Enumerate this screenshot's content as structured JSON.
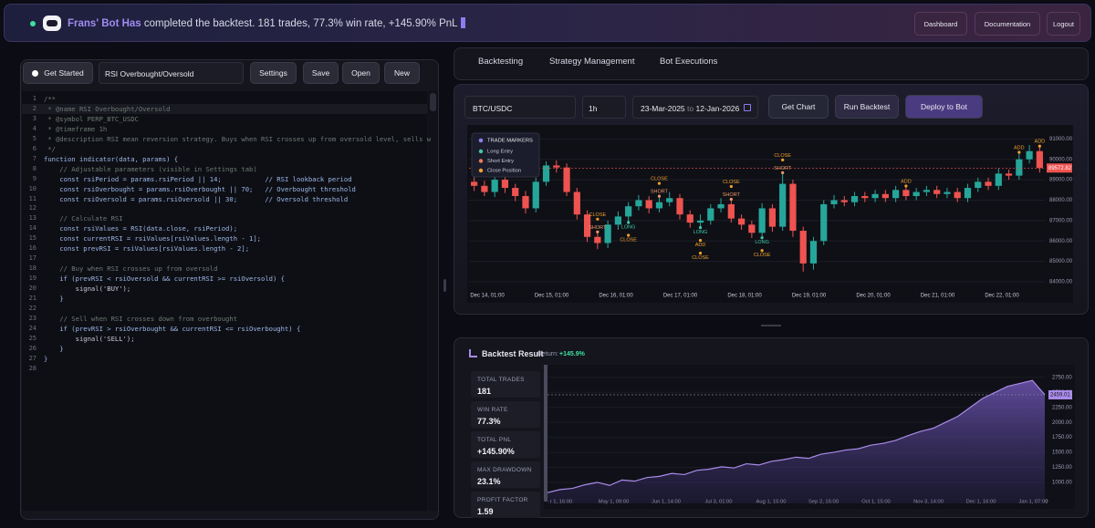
{
  "header": {
    "bot_name": "Frans' Bot Has",
    "message": "completed the backtest. 181 trades, 77.3% win rate, +145.90% PnL",
    "buttons": [
      "Dashboard",
      "Documentation",
      "Logout"
    ]
  },
  "toolbar": {
    "get_started": "Get Started",
    "strategy_name": "RSI Overbought/Oversold",
    "buttons": [
      "Settings",
      "Save",
      "Open",
      "New"
    ]
  },
  "editor": {
    "lines": [
      "/**",
      " * @name RSI Overbought/Oversold",
      " * @symbol PERP_BTC_USDC",
      " * @timeframe 1h",
      " * @description RSI mean reversion strategy. Buys when RSI crosses up from oversold level, sells w",
      " */",
      "function indicator(data, params) {",
      "    // Adjustable parameters (visible in Settings tab)",
      "    const rsiPeriod = params.rsiPeriod || 14;           // RSI lookback period",
      "    const rsiOverbought = params.rsiOverbought || 70;   // Overbought threshold",
      "    const rsiOversold = params.rsiOversold || 30;       // Oversold threshold",
      "",
      "    // Calculate RSI",
      "    const rsiValues = RSI(data.close, rsiPeriod);",
      "    const currentRSI = rsiValues[rsiValues.length - 1];",
      "    const prevRSI = rsiValues[rsiValues.length - 2];",
      "",
      "    // Buy when RSI crosses up from oversold",
      "    if (prevRSI < rsiOversold && currentRSI >= rsiOversold) {",
      "        signal('BUY');",
      "    }",
      "",
      "    // Sell when RSI crosses down from overbought",
      "    if (prevRSI > rsiOverbought && currentRSI <= rsiOverbought) {",
      "        signal('SELL');",
      "    }",
      "}",
      ""
    ],
    "line_numbers": [
      "1",
      "2",
      "3",
      "4",
      "5",
      "6",
      "7",
      "8",
      "9",
      "10",
      "11",
      "12",
      "13",
      "14",
      "15",
      "16",
      "17",
      "18",
      "19",
      "20",
      "21",
      "22",
      "23",
      "24",
      "25",
      "26",
      "27",
      "28"
    ]
  },
  "tabs": [
    "Backtesting",
    "Strategy Management",
    "Bot Executions"
  ],
  "controls": {
    "symbol": "BTC/USDC",
    "timeframe": "1h",
    "date_from": "23-Mar-2025",
    "date_sep": "to",
    "date_to": "12-Jan-2026",
    "buttons": [
      "Get Chart",
      "Run Backtest",
      "Deploy to Bot"
    ]
  },
  "price_chart": {
    "type": "candlestick",
    "legend_title": "TRADE MARKERS",
    "legend": [
      {
        "name": "Long Entry",
        "color": "#3ec9a6"
      },
      {
        "name": "Short Entry",
        "color": "#ef7a5a"
      },
      {
        "name": "Close Position",
        "color": "#f0a030"
      }
    ],
    "x_labels": [
      "Dec 14, 01:00",
      "Dec 15, 01:00",
      "Dec 16, 01:00",
      "Dec 17, 01:00",
      "Dec 18, 01:00",
      "Dec 19, 01:00",
      "Dec 20, 01:00",
      "Dec 21, 01:00",
      "Dec 22, 01:00"
    ],
    "ylim": [
      83600,
      91550
    ],
    "yticks": [
      {
        "value": 91000,
        "label": "91000.00"
      },
      {
        "value": 90000,
        "label": "90000.00"
      },
      {
        "value": 89000,
        "label": "89000.00"
      },
      {
        "value": 88000,
        "label": "88000.00"
      },
      {
        "value": 87000,
        "label": "87000.00"
      },
      {
        "value": 86000,
        "label": "86000.00"
      },
      {
        "value": 85000,
        "label": "85000.00"
      },
      {
        "value": 84000,
        "label": "84000.00"
      }
    ],
    "up_color": "#26a69a",
    "down_color": "#ef5350",
    "open": [
      88900,
      88700,
      88400,
      89000,
      88600,
      88200,
      87600,
      88900,
      89700,
      89600,
      88400,
      87300,
      86200,
      85900,
      86800,
      87200,
      87700,
      88000,
      87600,
      87900,
      88100,
      87300,
      86900,
      87000,
      87600,
      87800,
      87100,
      86800,
      86400,
      87600,
      86700,
      88800,
      86500,
      84900,
      86000,
      87800,
      88000,
      87900,
      88200,
      88100,
      88300,
      88100,
      88500,
      88200,
      88400,
      88500,
      88300,
      88400,
      88100,
      88600,
      88900,
      88700,
      89300,
      89200,
      90000,
      90400
    ],
    "high": [
      89150,
      88950,
      89250,
      89300,
      88800,
      88450,
      89100,
      89900,
      89950,
      89800,
      88600,
      87500,
      86400,
      87000,
      87450,
      87900,
      88250,
      88200,
      88150,
      88400,
      88300,
      87500,
      87300,
      87800,
      88100,
      88000,
      87300,
      87000,
      87850,
      87800,
      89300,
      89000,
      86700,
      86200,
      88000,
      88250,
      88200,
      88400,
      88400,
      88500,
      88500,
      88700,
      88650,
      88600,
      88700,
      88700,
      88600,
      88600,
      88800,
      89100,
      89100,
      89550,
      89500,
      90300,
      90700,
      90600
    ],
    "low": [
      88450,
      88200,
      88150,
      88350,
      87950,
      87350,
      87400,
      88700,
      89350,
      88200,
      87050,
      85950,
      85600,
      85650,
      86550,
      86950,
      87500,
      87350,
      87400,
      87700,
      87050,
      86650,
      86700,
      86800,
      87400,
      86900,
      86550,
      86150,
      86200,
      86450,
      86500,
      86200,
      84500,
      84600,
      85800,
      87600,
      87700,
      87700,
      87900,
      87900,
      87900,
      87900,
      88000,
      88000,
      88200,
      88100,
      88100,
      87900,
      87900,
      88400,
      88500,
      88500,
      89000,
      89000,
      89800,
      89350
    ],
    "close": [
      88700,
      88400,
      89000,
      88600,
      88200,
      87600,
      88900,
      89700,
      89600,
      88400,
      87300,
      86200,
      85900,
      86800,
      87200,
      87700,
      88000,
      87600,
      87900,
      88100,
      87300,
      86900,
      87000,
      87600,
      87800,
      87100,
      86800,
      86400,
      87600,
      86700,
      88800,
      86500,
      84900,
      86000,
      87800,
      88000,
      87900,
      88200,
      88100,
      88300,
      88100,
      88500,
      88200,
      88400,
      88500,
      88300,
      88400,
      88100,
      88600,
      88900,
      88700,
      89300,
      89200,
      90000,
      90400,
      89572.82
    ],
    "last_price": {
      "value": 89572.82,
      "label": "89572.82"
    },
    "markers": [
      {
        "candle": 12,
        "side": "above",
        "labels": [
          "CLOSE",
          "SHORT"
        ]
      },
      {
        "candle": 15,
        "side": "below",
        "labels": [
          "LONG",
          "CLOSE"
        ]
      },
      {
        "candle": 18,
        "side": "above",
        "labels": [
          "CLOSE",
          "SHORT"
        ]
      },
      {
        "candle": 22,
        "side": "below",
        "labels": [
          "LONG",
          "ADD",
          "CLOSE"
        ]
      },
      {
        "candle": 25,
        "side": "above",
        "labels": [
          "CLOSE",
          "SHORT"
        ]
      },
      {
        "candle": 28,
        "side": "below",
        "labels": [
          "LONG",
          "CLOSE"
        ]
      },
      {
        "candle": 30,
        "side": "above",
        "labels": [
          "CLOSE",
          "SHORT"
        ]
      },
      {
        "candle": 42,
        "side": "above",
        "labels": [
          "ADD"
        ]
      },
      {
        "candle": 53,
        "side": "above",
        "labels": [
          "ADD"
        ]
      },
      {
        "candle": 55,
        "side": "above",
        "labels": [
          "ADD"
        ]
      }
    ]
  },
  "backtest": {
    "title": "Backtest Result",
    "return_label": "Return:",
    "return_value": "+145.9%",
    "stats": [
      {
        "label": "TOTAL TRADES",
        "value": "181"
      },
      {
        "label": "WIN RATE",
        "value": "77.3%"
      },
      {
        "label": "TOTAL PNL",
        "value": "+145.90%"
      },
      {
        "label": "MAX DRAWDOWN",
        "value": "23.1%"
      },
      {
        "label": "PROFIT FACTOR",
        "value": "1.59"
      }
    ]
  },
  "equity_chart": {
    "type": "area",
    "color": "#a98be8",
    "ylim": [
      650,
      2930
    ],
    "yticks": [
      {
        "value": 2750,
        "label": "2750.00"
      },
      {
        "value": 2500,
        "label": "2500.00"
      },
      {
        "value": 2250,
        "label": "2250.00"
      },
      {
        "value": 2000,
        "label": "2000.00"
      },
      {
        "value": 1750,
        "label": "1750.00"
      },
      {
        "value": 1500,
        "label": "1500.00"
      },
      {
        "value": 1250,
        "label": "1250.00"
      },
      {
        "value": 1000,
        "label": "1000.00"
      }
    ],
    "x_labels": [
      "r 1, 16:00",
      "May 1, 09:00",
      "Jun 1, 14:00",
      "Jul 3, 01:00",
      "Aug 1, 15:00",
      "Sep 2, 15:00",
      "Oct 1, 15:00",
      "Nov 3, 14:00",
      "Dec 1, 16:00",
      "Jan 1, 07:00"
    ],
    "values": [
      830,
      880,
      900,
      960,
      1000,
      950,
      1040,
      1020,
      1080,
      1100,
      1150,
      1130,
      1200,
      1220,
      1260,
      1240,
      1310,
      1290,
      1350,
      1380,
      1420,
      1400,
      1470,
      1500,
      1540,
      1560,
      1620,
      1650,
      1700,
      1780,
      1850,
      1900,
      2000,
      2100,
      2250,
      2400,
      2500,
      2600,
      2650,
      2700,
      2459.01
    ],
    "last_value": {
      "value": 2459.01,
      "label": "2459.01"
    }
  }
}
